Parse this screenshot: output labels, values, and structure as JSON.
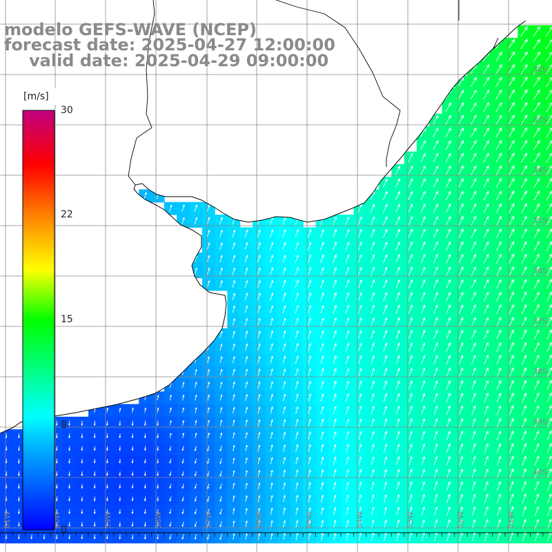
{
  "title": {
    "line1": "modelo GEFS-WAVE (NCEP)",
    "line2": "forecast date: 2025-04-27 12:00:00",
    "line3": "valid date: 2025-04-29 09:00:00"
  },
  "colorbar": {
    "unit": "[m/s]",
    "ticks": [
      "30",
      "22",
      "15",
      "8",
      "0"
    ],
    "min": 0,
    "max": 30,
    "colors": [
      "#0000ff",
      "#00c8ff",
      "#00ffff",
      "#00ff00",
      "#ffff00",
      "#ff8000",
      "#ff0000",
      "#c00080"
    ]
  },
  "map": {
    "longitude_labels": [
      "61W",
      "60W",
      "59W",
      "58W",
      "57W",
      "56W",
      "55W",
      "54W",
      "53W",
      "52W",
      "51W"
    ],
    "latitude_labels": [
      "32S",
      "33S",
      "34S",
      "35S",
      "36S",
      "37S",
      "38S",
      "39S",
      "40S"
    ],
    "field": "wind speed and direction",
    "land_color": "#ffffff",
    "coast_color": "#000000",
    "arrow_color": "#ffffff"
  }
}
